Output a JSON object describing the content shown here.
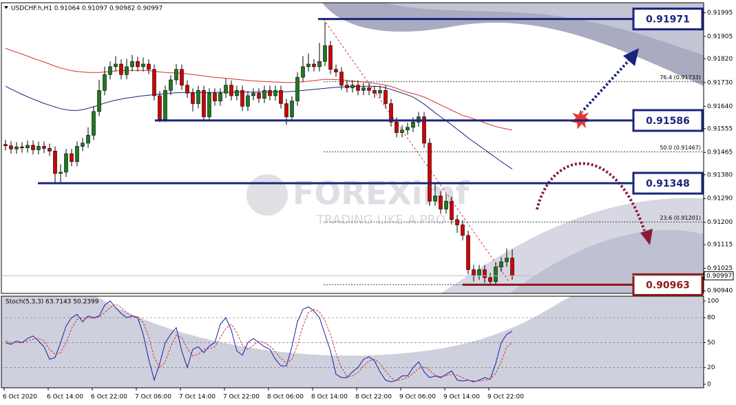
{
  "chart_data": [
    {
      "type": "candlestick",
      "title": "USDCHF.h,H1  0.91064 0.91097 0.90982 0.90997",
      "watermark": {
        "brand": "FOREXimf",
        "tagline": "TRADING LIKE A PRO"
      },
      "categories": [
        "6 Oct 2020",
        null,
        null,
        null,
        null,
        null,
        null,
        null,
        "6 Oct 14:00",
        null,
        null,
        null,
        null,
        null,
        null,
        null,
        "6 Oct 22:00",
        null,
        null,
        null,
        null,
        null,
        null,
        null,
        "7 Oct 06:00",
        null,
        null,
        null,
        null,
        null,
        null,
        null,
        "7 Oct 14:00",
        null,
        null,
        null,
        null,
        null,
        null,
        null,
        "7 Oct 22:00",
        null,
        null,
        null,
        null,
        null,
        null,
        null,
        "8 Oct 06:00",
        null,
        null,
        null,
        null,
        null,
        null,
        null,
        "8 Oct 14:00",
        null,
        null,
        null,
        null,
        null,
        null,
        null,
        "8 Oct 22:00",
        null,
        null,
        null,
        null,
        null,
        null,
        null,
        "9 Oct 06:00",
        null,
        null,
        null,
        null,
        null,
        null,
        null,
        "9 Oct 14:00",
        null,
        null,
        null,
        null,
        null,
        null,
        null,
        "9 Oct 22:00",
        null,
        null,
        null,
        null
      ],
      "open": [
        0.91495,
        0.9149,
        0.91478,
        0.91486,
        0.91482,
        0.91492,
        0.91475,
        0.91488,
        0.9148,
        0.9147,
        0.91385,
        0.9139,
        0.9146,
        0.9143,
        0.91488,
        0.915,
        0.9153,
        0.9162,
        0.917,
        0.9176,
        0.9179,
        0.918,
        0.9176,
        0.9179,
        0.9181,
        0.9179,
        0.918,
        0.9178,
        0.9168,
        0.9159,
        0.917,
        0.9174,
        0.9178,
        0.9172,
        0.9169,
        0.9165,
        0.917,
        0.916,
        0.9169,
        0.9166,
        0.9169,
        0.9172,
        0.9168,
        0.917,
        0.9164,
        0.9168,
        0.9169,
        0.9167,
        0.917,
        0.9168,
        0.917,
        0.9165,
        0.916,
        0.9166,
        0.9175,
        0.9179,
        0.918,
        0.9179,
        0.9181,
        0.9187,
        0.9178,
        0.9177,
        0.9172,
        0.9171,
        0.9172,
        0.917,
        0.9171,
        0.917,
        0.9169,
        0.917,
        0.9165,
        0.9158,
        0.9154,
        0.9155,
        0.9156,
        0.9158,
        0.916,
        0.915,
        0.9128,
        0.913,
        0.9125,
        0.9128,
        0.9121,
        0.9119,
        0.9115,
        0.9102,
        0.91,
        0.9102,
        0.9099,
        0.90975,
        0.9103,
        0.9105,
        0.91064
      ],
      "high": [
        0.91513,
        0.91508,
        0.91504,
        0.91504,
        0.9151,
        0.9151,
        0.91506,
        0.91506,
        0.91498,
        0.91488,
        0.9142,
        0.91478,
        0.91478,
        0.91506,
        0.9152,
        0.9156,
        0.9164,
        0.9174,
        0.9179,
        0.9181,
        0.9183,
        0.91818,
        0.9182,
        0.91835,
        0.91828,
        0.91825,
        0.91818,
        0.91798,
        0.91698,
        0.91718,
        0.91758,
        0.918,
        0.91798,
        0.91738,
        0.91708,
        0.91718,
        0.91718,
        0.91708,
        0.91708,
        0.91708,
        0.91745,
        0.91738,
        0.91718,
        0.91718,
        0.91698,
        0.91708,
        0.91708,
        0.91718,
        0.91718,
        0.91718,
        0.91718,
        0.91668,
        0.91678,
        0.91768,
        0.9183,
        0.9184,
        0.91818,
        0.9188,
        0.9196,
        0.91888,
        0.91798,
        0.91788,
        0.91738,
        0.91738,
        0.91738,
        0.91728,
        0.91728,
        0.91718,
        0.91718,
        0.91718,
        0.91668,
        0.91598,
        0.91568,
        0.91578,
        0.91598,
        0.91618,
        0.91618,
        0.91518,
        0.9135,
        0.91318,
        0.9131,
        0.91298,
        0.91228,
        0.91208,
        0.91168,
        0.91038,
        0.91038,
        0.91038,
        0.91008,
        0.91048,
        0.91068,
        0.911,
        0.91097
      ],
      "low": [
        0.91472,
        0.9146,
        0.9146,
        0.91464,
        0.91464,
        0.91457,
        0.91457,
        0.91462,
        0.91452,
        0.9135,
        0.9135,
        0.91372,
        0.91412,
        0.91412,
        0.9147,
        0.91482,
        0.91512,
        0.91602,
        0.91682,
        0.91742,
        0.91772,
        0.91742,
        0.91742,
        0.91772,
        0.91772,
        0.91772,
        0.91762,
        0.91662,
        0.9158,
        0.9158,
        0.91682,
        0.91722,
        0.91702,
        0.91672,
        0.9162,
        0.91632,
        0.91582,
        0.91582,
        0.91642,
        0.91642,
        0.91672,
        0.91662,
        0.91662,
        0.91622,
        0.91622,
        0.91662,
        0.91652,
        0.91652,
        0.91662,
        0.91662,
        0.91632,
        0.9157,
        0.91582,
        0.91642,
        0.91732,
        0.91772,
        0.91772,
        0.91772,
        0.91792,
        0.91762,
        0.91752,
        0.91702,
        0.91692,
        0.91692,
        0.91682,
        0.91682,
        0.91682,
        0.91672,
        0.91672,
        0.91632,
        0.91562,
        0.91522,
        0.91522,
        0.91532,
        0.91542,
        0.91562,
        0.91482,
        0.91262,
        0.91262,
        0.91232,
        0.91232,
        0.91192,
        0.9116,
        0.91132,
        0.91002,
        0.90975,
        0.90982,
        0.9097,
        0.9096,
        0.9096,
        0.91012,
        0.91032,
        0.90982
      ],
      "close": [
        0.9149,
        0.91478,
        0.91486,
        0.91482,
        0.91492,
        0.91475,
        0.91488,
        0.9148,
        0.9147,
        0.91385,
        0.9139,
        0.9146,
        0.9143,
        0.91488,
        0.915,
        0.9153,
        0.9162,
        0.917,
        0.9176,
        0.9179,
        0.918,
        0.9176,
        0.9179,
        0.9181,
        0.9179,
        0.918,
        0.9178,
        0.9168,
        0.9159,
        0.917,
        0.9174,
        0.9178,
        0.9172,
        0.9169,
        0.9165,
        0.917,
        0.916,
        0.9169,
        0.9166,
        0.9169,
        0.9172,
        0.9168,
        0.917,
        0.9164,
        0.9168,
        0.9169,
        0.9167,
        0.917,
        0.9168,
        0.917,
        0.9165,
        0.916,
        0.9166,
        0.9175,
        0.9179,
        0.918,
        0.9179,
        0.9181,
        0.9187,
        0.9178,
        0.9177,
        0.9172,
        0.9171,
        0.9172,
        0.917,
        0.9171,
        0.917,
        0.9169,
        0.917,
        0.9165,
        0.9158,
        0.9154,
        0.9155,
        0.9156,
        0.9158,
        0.916,
        0.915,
        0.9128,
        0.913,
        0.9125,
        0.9128,
        0.9121,
        0.9119,
        0.9115,
        0.9102,
        0.91,
        0.9102,
        0.9099,
        0.90975,
        0.9103,
        0.9105,
        0.91064,
        0.90997
      ],
      "colors": {
        "up": "#1f7a1f",
        "down": "#d10000",
        "wick": "#000000"
      },
      "series": [
        {
          "color": "#d32f2f",
          "values": [
            0.9186,
            0.91852,
            0.91845,
            0.91838,
            0.9183,
            0.91822,
            0.91815,
            0.91808,
            0.918,
            0.91792,
            0.91785,
            0.9178,
            0.91775,
            0.91772,
            0.9177,
            0.91768,
            0.91768,
            0.91768,
            0.9177,
            0.91772,
            0.91774,
            0.91775,
            0.91776,
            0.91776,
            0.91776,
            0.91776,
            0.91775,
            0.91773,
            0.9177,
            0.91768,
            0.91767,
            0.91766,
            0.91765,
            0.91763,
            0.9176,
            0.91758,
            0.91755,
            0.91752,
            0.9175,
            0.91748,
            0.91746,
            0.91744,
            0.91742,
            0.9174,
            0.91738,
            0.91736,
            0.91735,
            0.91734,
            0.91733,
            0.91732,
            0.91731,
            0.9173,
            0.9173,
            0.91731,
            0.91733,
            0.91735,
            0.91737,
            0.9174,
            0.91742,
            0.91742,
            0.91741,
            0.9174,
            0.91738,
            0.91736,
            0.91734,
            0.91732,
            0.9173,
            0.91727,
            0.91724,
            0.9172,
            0.91715,
            0.91708,
            0.917,
            0.91693,
            0.91688,
            0.91682,
            0.91675,
            0.91665,
            0.91655,
            0.91645,
            0.91635,
            0.91625,
            0.91615,
            0.91605,
            0.916,
            0.91592,
            0.91585,
            0.91577,
            0.9157,
            0.91563,
            0.91558,
            0.91554,
            0.9155
          ]
        },
        {
          "color": "#1a237e",
          "values": [
            0.91716,
            0.91705,
            0.91695,
            0.91685,
            0.91676,
            0.91667,
            0.91659,
            0.91651,
            0.91644,
            0.91637,
            0.91631,
            0.91627,
            0.91624,
            0.91624,
            0.91627,
            0.91632,
            0.91638,
            0.91645,
            0.91652,
            0.91658,
            0.91663,
            0.91667,
            0.91671,
            0.91674,
            0.91677,
            0.9168,
            0.91682,
            0.91684,
            0.91686,
            0.91688,
            0.9169,
            0.91691,
            0.91692,
            0.91692,
            0.91692,
            0.91692,
            0.91692,
            0.91692,
            0.91693,
            0.91693,
            0.91693,
            0.91693,
            0.91694,
            0.91694,
            0.91694,
            0.91694,
            0.91694,
            0.91694,
            0.91694,
            0.91695,
            0.91695,
            0.91695,
            0.91696,
            0.91698,
            0.917,
            0.91702,
            0.91704,
            0.91706,
            0.91708,
            0.9171,
            0.91712,
            0.91713,
            0.91714,
            0.91715,
            0.91716,
            0.91716,
            0.91716,
            0.91716,
            0.91714,
            0.9171,
            0.91704,
            0.91697,
            0.9169,
            0.91683,
            0.91675,
            0.91662,
            0.91648,
            0.91632,
            0.91615,
            0.916,
            0.91585,
            0.91569,
            0.91553,
            0.91537,
            0.9152,
            0.91505,
            0.9149,
            0.91475,
            0.9146,
            0.91445,
            0.9143,
            0.91416,
            0.91402
          ]
        }
      ],
      "ylim": [
        0.9093,
        0.9203
      ],
      "yticks": [
        0.91995,
        0.91905,
        {
          "value": 0.9182,
          "label": "0.91820"
        },
        {
          "value": 0.9173,
          "label": "0.91730"
        },
        {
          "value": 0.9164,
          "label": "0.91640"
        },
        0.91555,
        0.91465,
        {
          "value": 0.9138,
          "label": "0.91380"
        },
        {
          "value": 0.9129,
          "label": "0.91290"
        },
        {
          "value": 0.912,
          "label": "0.91200"
        },
        0.91115,
        0.91025,
        {
          "value": 0.9094,
          "label": "0.90940"
        }
      ],
      "levels": [
        {
          "value": 0.91971,
          "color": "#1a237e"
        },
        {
          "value": 0.91586,
          "color": "#1a237e"
        },
        {
          "value": 0.91348,
          "color": "#1a237e"
        },
        {
          "value": 0.90963,
          "color": "#8b1a1a"
        }
      ],
      "fibonacci": [
        {
          "value": 0.91733,
          "label": "76.4 (0.91733)"
        },
        {
          "value": 0.91467,
          "label": "50.0 (0.91467)"
        },
        {
          "value": 0.91201,
          "label": "23.6 (0.91201)"
        }
      ]
    },
    {
      "type": "line",
      "title": "Stoch(5,3,3) 63.7143 50.2399",
      "series": [
        {
          "color": "#1a1aa6",
          "values": [
            50,
            48,
            52,
            50,
            55,
            58,
            52,
            45,
            30,
            32,
            50,
            70,
            80,
            84,
            75,
            82,
            80,
            82,
            95,
            100,
            92,
            85,
            80,
            82,
            80,
            60,
            30,
            5,
            25,
            50,
            60,
            68,
            40,
            20,
            42,
            45,
            38,
            46,
            50,
            72,
            80,
            65,
            40,
            35,
            50,
            55,
            50,
            45,
            42,
            30,
            22,
            22,
            45,
            75,
            90,
            93,
            88,
            80,
            60,
            40,
            12,
            8,
            8,
            15,
            20,
            30,
            33,
            28,
            15,
            5,
            3,
            5,
            10,
            10,
            20,
            27,
            15,
            8,
            10,
            8,
            12,
            16,
            5,
            4,
            5,
            3,
            5,
            8,
            6,
            25,
            50,
            60,
            63.7143
          ]
        },
        {
          "color": "#d32f2f",
          "dashed": true,
          "values": [
            52,
            50,
            50,
            50,
            52,
            54,
            55,
            52,
            42,
            36,
            38,
            50,
            67,
            78,
            80,
            80,
            79,
            81,
            86,
            92,
            96,
            92,
            86,
            82,
            81,
            74,
            57,
            32,
            20,
            27,
            45,
            59,
            56,
            43,
            34,
            36,
            42,
            43,
            45,
            56,
            67,
            72,
            62,
            47,
            42,
            47,
            52,
            50,
            46,
            39,
            31,
            25,
            30,
            47,
            70,
            86,
            90,
            87,
            76,
            60,
            37,
            20,
            9,
            10,
            14,
            22,
            28,
            30,
            25,
            16,
            8,
            4,
            6,
            8,
            13,
            19,
            21,
            17,
            11,
            9,
            10,
            12,
            11,
            8,
            5,
            4,
            4,
            5,
            6,
            13,
            27,
            45,
            50.2399
          ]
        }
      ],
      "ylim": [
        -4.2,
        105.8
      ],
      "yticks": [
        100,
        80,
        50,
        20,
        0
      ]
    }
  ]
}
